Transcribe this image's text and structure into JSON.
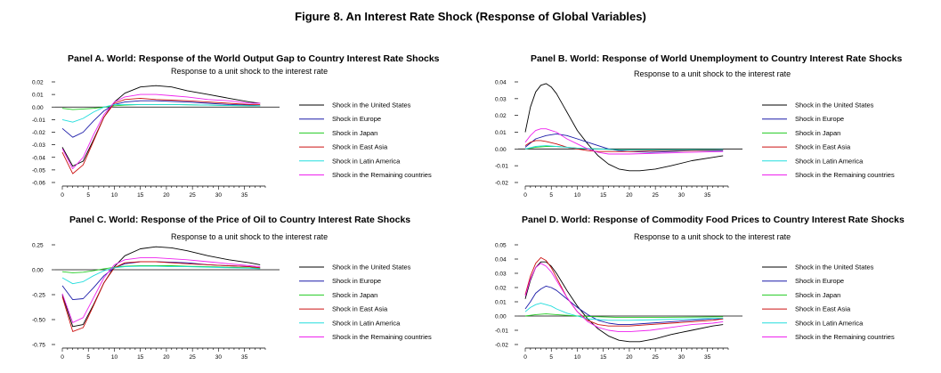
{
  "figure_title": "Figure 8. An Interest Rate Shock (Response of Global Variables)",
  "colors": {
    "United States": "#000000",
    "Europe": "#1a1aa8",
    "Japan": "#22cc22",
    "East Asia": "#cc1111",
    "Latin America": "#22dddd",
    "Remaining countries": "#ee22ee"
  },
  "chart_data": [
    {
      "type": "line",
      "panel": "A",
      "title": "Panel A. World: Response of the World Output Gap to Country Interest Rate Shocks",
      "subtitle": "Response to a unit shock to the interest rate",
      "ylim": [
        -0.06,
        0.02
      ],
      "yticks": [
        "0.02",
        "0.01",
        "0.00",
        "-0.01",
        "-0.02",
        "-0.03",
        "-0.04",
        "-0.05",
        "-0.06"
      ],
      "xlim": [
        0,
        39
      ],
      "xticks": [
        "0",
        "5",
        "10",
        "15",
        "20",
        "25",
        "30",
        "35"
      ],
      "legend": [
        "Shock in the United States",
        "Shock in Europe",
        "Shock in Japan",
        "Shock in East Asia",
        "Shock in Latin America",
        "Shock in the Remaining countries"
      ],
      "series": [
        {
          "name": "United States",
          "x": [
            0,
            2,
            4,
            6,
            8,
            10,
            12,
            15,
            18,
            21,
            24,
            28,
            32,
            36,
            38
          ],
          "values": [
            -0.032,
            -0.047,
            -0.043,
            -0.026,
            -0.008,
            0.004,
            0.011,
            0.016,
            0.017,
            0.016,
            0.013,
            0.01,
            0.007,
            0.004,
            0.003
          ]
        },
        {
          "name": "Europe",
          "x": [
            0,
            2,
            4,
            6,
            8,
            10,
            12,
            15,
            18,
            21,
            24,
            28,
            32,
            36,
            38
          ],
          "values": [
            -0.017,
            -0.024,
            -0.02,
            -0.011,
            -0.003,
            0.002,
            0.004,
            0.005,
            0.005,
            0.0045,
            0.004,
            0.003,
            0.002,
            0.0015,
            0.001
          ]
        },
        {
          "name": "Japan",
          "x": [
            0,
            2,
            4,
            6,
            8,
            10,
            12,
            15,
            18,
            21,
            24,
            28,
            32,
            36,
            38
          ],
          "values": [
            -0.001,
            -0.002,
            -0.0015,
            -0.001,
            0.0,
            0.001,
            0.0015,
            0.002,
            0.002,
            0.002,
            0.0018,
            0.0015,
            0.0012,
            0.001,
            0.001
          ]
        },
        {
          "name": "East Asia",
          "x": [
            0,
            2,
            4,
            6,
            8,
            10,
            12,
            15,
            18,
            21,
            24,
            28,
            32,
            36,
            38
          ],
          "values": [
            -0.036,
            -0.053,
            -0.046,
            -0.027,
            -0.008,
            0.003,
            0.006,
            0.007,
            0.006,
            0.0055,
            0.005,
            0.004,
            0.003,
            0.002,
            0.002
          ]
        },
        {
          "name": "Latin America",
          "x": [
            0,
            2,
            4,
            6,
            8,
            10,
            12,
            15,
            18,
            21,
            24,
            28,
            32,
            36,
            38
          ],
          "values": [
            -0.01,
            -0.012,
            -0.009,
            -0.004,
            0.0,
            0.002,
            0.002,
            0.002,
            0.002,
            0.002,
            0.0018,
            0.0015,
            0.0012,
            0.001,
            0.001
          ]
        },
        {
          "name": "Remaining countries",
          "x": [
            0,
            2,
            4,
            6,
            8,
            10,
            12,
            15,
            18,
            21,
            24,
            28,
            32,
            36,
            38
          ],
          "values": [
            -0.033,
            -0.049,
            -0.04,
            -0.022,
            -0.006,
            0.004,
            0.008,
            0.01,
            0.01,
            0.009,
            0.008,
            0.006,
            0.005,
            0.003,
            0.003
          ]
        }
      ]
    },
    {
      "type": "line",
      "panel": "B",
      "title": "Panel B. World: Response of World Unemployment to Country Interest Rate Shocks",
      "subtitle": "Response to a unit shock to the interest rate",
      "ylim": [
        -0.02,
        0.04
      ],
      "yticks": [
        "0.04",
        "0.03",
        "0.02",
        "0.01",
        "0.00",
        "-0.01",
        "-0.02"
      ],
      "xlim": [
        0,
        39
      ],
      "xticks": [
        "0",
        "5",
        "10",
        "15",
        "20",
        "25",
        "30",
        "35"
      ],
      "legend": [
        "Shock in the United States",
        "Shock in Europe",
        "Shock in Japan",
        "Shock in East Asia",
        "Shock in Latin America",
        "Shock in the Remaining countries"
      ],
      "series": [
        {
          "name": "United States",
          "x": [
            0,
            1,
            2,
            3,
            4,
            5,
            6,
            8,
            10,
            12,
            14,
            16,
            18,
            20,
            22,
            25,
            28,
            32,
            36,
            38
          ],
          "values": [
            0.01,
            0.025,
            0.034,
            0.038,
            0.039,
            0.037,
            0.033,
            0.022,
            0.011,
            0.003,
            -0.004,
            -0.009,
            -0.012,
            -0.013,
            -0.013,
            -0.012,
            -0.01,
            -0.007,
            -0.005,
            -0.004
          ]
        },
        {
          "name": "Europe",
          "x": [
            0,
            2,
            4,
            6,
            8,
            10,
            12,
            14,
            16,
            18,
            20,
            24,
            28,
            32,
            36,
            38
          ],
          "values": [
            0.001,
            0.006,
            0.008,
            0.009,
            0.008,
            0.006,
            0.004,
            0.002,
            0.0,
            -0.001,
            -0.0015,
            -0.002,
            -0.0015,
            -0.001,
            -0.001,
            -0.001
          ]
        },
        {
          "name": "Japan",
          "x": [
            0,
            2,
            4,
            6,
            8,
            10,
            14,
            18,
            24,
            30,
            38
          ],
          "values": [
            0.0,
            0.001,
            0.0015,
            0.0015,
            0.001,
            0.0005,
            0.0,
            -0.0005,
            -0.0005,
            -0.0005,
            -0.0003
          ]
        },
        {
          "name": "East Asia",
          "x": [
            0,
            1,
            2,
            3,
            4,
            6,
            8,
            10,
            12,
            14,
            16,
            20,
            26,
            32,
            38
          ],
          "values": [
            0.002,
            0.004,
            0.005,
            0.005,
            0.0045,
            0.003,
            0.001,
            0.0,
            -0.001,
            -0.0015,
            -0.0015,
            -0.0015,
            -0.001,
            -0.001,
            -0.0005
          ]
        },
        {
          "name": "Latin America",
          "x": [
            0,
            2,
            4,
            6,
            8,
            10,
            14,
            18,
            24,
            30,
            38
          ],
          "values": [
            0.0,
            0.0015,
            0.002,
            0.0015,
            0.001,
            0.0005,
            0.0,
            -0.0005,
            -0.0005,
            -0.0005,
            -0.0003
          ]
        },
        {
          "name": "Remaining countries",
          "x": [
            0,
            1,
            2,
            3,
            4,
            5,
            6,
            8,
            10,
            12,
            14,
            16,
            20,
            26,
            32,
            38
          ],
          "values": [
            0.004,
            0.008,
            0.011,
            0.012,
            0.012,
            0.011,
            0.01,
            0.006,
            0.003,
            0.0,
            -0.002,
            -0.003,
            -0.003,
            -0.0025,
            -0.002,
            -0.0015
          ]
        }
      ]
    },
    {
      "type": "line",
      "panel": "C",
      "title": "Panel C. World: Response of the Price of Oil to Country Interest Rate Shocks",
      "subtitle": "Response to a unit shock to the interest rate",
      "ylim": [
        -0.75,
        0.25
      ],
      "yticks": [
        "0.25",
        "0.00",
        "-0.25",
        "-0.50",
        "-0.75"
      ],
      "xlim": [
        0,
        39
      ],
      "xticks": [
        "0",
        "5",
        "10",
        "15",
        "20",
        "25",
        "30",
        "35"
      ],
      "legend": [
        "Shock in the United States",
        "Shock in Europe",
        "Shock in Japan",
        "Shock in East Asia",
        "Shock in Latin America",
        "Shock in the Remaining countries"
      ],
      "series": [
        {
          "name": "United States",
          "x": [
            0,
            2,
            4,
            6,
            8,
            10,
            12,
            15,
            18,
            21,
            24,
            28,
            32,
            36,
            38
          ],
          "values": [
            -0.25,
            -0.57,
            -0.55,
            -0.35,
            -0.13,
            0.03,
            0.14,
            0.21,
            0.23,
            0.22,
            0.19,
            0.14,
            0.1,
            0.07,
            0.05
          ]
        },
        {
          "name": "Europe",
          "x": [
            0,
            2,
            4,
            6,
            8,
            10,
            12,
            15,
            18,
            21,
            24,
            28,
            32,
            36,
            38
          ],
          "values": [
            -0.16,
            -0.3,
            -0.29,
            -0.18,
            -0.06,
            0.02,
            0.06,
            0.08,
            0.08,
            0.075,
            0.07,
            0.05,
            0.04,
            0.03,
            0.02
          ]
        },
        {
          "name": "Japan",
          "x": [
            0,
            2,
            4,
            6,
            8,
            10,
            12,
            15,
            18,
            21,
            24,
            28,
            32,
            36,
            38
          ],
          "values": [
            -0.02,
            -0.03,
            -0.025,
            -0.01,
            0.01,
            0.025,
            0.035,
            0.04,
            0.04,
            0.04,
            0.035,
            0.03,
            0.025,
            0.02,
            0.015
          ]
        },
        {
          "name": "East Asia",
          "x": [
            0,
            2,
            4,
            6,
            8,
            10,
            12,
            15,
            18,
            21,
            24,
            28,
            32,
            36,
            38
          ],
          "values": [
            -0.27,
            -0.62,
            -0.58,
            -0.36,
            -0.13,
            0.02,
            0.07,
            0.08,
            0.08,
            0.07,
            0.06,
            0.05,
            0.04,
            0.03,
            0.02
          ]
        },
        {
          "name": "Latin America",
          "x": [
            0,
            2,
            4,
            6,
            8,
            10,
            12,
            15,
            18,
            21,
            24,
            28,
            32,
            36,
            38
          ],
          "values": [
            -0.08,
            -0.14,
            -0.12,
            -0.06,
            -0.01,
            0.02,
            0.03,
            0.035,
            0.035,
            0.03,
            0.03,
            0.025,
            0.02,
            0.015,
            0.01
          ]
        },
        {
          "name": "Remaining countries",
          "x": [
            0,
            2,
            4,
            6,
            8,
            10,
            12,
            15,
            18,
            21,
            24,
            28,
            32,
            36,
            38
          ],
          "values": [
            -0.24,
            -0.53,
            -0.48,
            -0.28,
            -0.08,
            0.05,
            0.1,
            0.12,
            0.12,
            0.11,
            0.1,
            0.08,
            0.06,
            0.04,
            0.03
          ]
        }
      ]
    },
    {
      "type": "line",
      "panel": "D",
      "title": "Panel D. World: Response of Commodity Food Prices to Country Interest Rate Shocks",
      "subtitle": "Response to a unit shock to the interest rate",
      "ylim": [
        -0.02,
        0.05
      ],
      "yticks": [
        "0.05",
        "0.04",
        "0.03",
        "0.02",
        "0.01",
        "0.00",
        "-0.01",
        "-0.02"
      ],
      "xlim": [
        0,
        39
      ],
      "xticks": [
        "0",
        "5",
        "10",
        "15",
        "20",
        "25",
        "30",
        "35"
      ],
      "legend": [
        "Shock in the United States",
        "Shock in Europe",
        "Shock in Japan",
        "Shock in East Asia",
        "Shock in Latin America",
        "Shock in the Remaining countries"
      ],
      "series": [
        {
          "name": "United States",
          "x": [
            0,
            1,
            2,
            3,
            4,
            5,
            6,
            8,
            10,
            12,
            14,
            16,
            18,
            20,
            22,
            25,
            28,
            32,
            36,
            38
          ],
          "values": [
            0.012,
            0.025,
            0.034,
            0.038,
            0.038,
            0.035,
            0.03,
            0.018,
            0.007,
            -0.002,
            -0.009,
            -0.014,
            -0.017,
            -0.018,
            -0.018,
            -0.016,
            -0.013,
            -0.01,
            -0.007,
            -0.006
          ]
        },
        {
          "name": "Europe",
          "x": [
            0,
            1,
            2,
            3,
            4,
            5,
            6,
            8,
            10,
            12,
            14,
            16,
            18,
            20,
            24,
            28,
            32,
            36,
            38
          ],
          "values": [
            0.005,
            0.01,
            0.016,
            0.019,
            0.021,
            0.02,
            0.018,
            0.012,
            0.006,
            0.001,
            -0.003,
            -0.005,
            -0.006,
            -0.006,
            -0.005,
            -0.004,
            -0.003,
            -0.002,
            -0.002
          ]
        },
        {
          "name": "Japan",
          "x": [
            0,
            2,
            4,
            6,
            8,
            10,
            14,
            18,
            24,
            30,
            38
          ],
          "values": [
            0.0,
            0.001,
            0.0015,
            0.001,
            0.0005,
            0.0,
            -0.0005,
            -0.001,
            -0.001,
            -0.0008,
            -0.0005
          ]
        },
        {
          "name": "East Asia",
          "x": [
            0,
            1,
            2,
            3,
            4,
            5,
            6,
            8,
            10,
            12,
            14,
            16,
            18,
            20,
            24,
            28,
            32,
            36,
            38
          ],
          "values": [
            0.015,
            0.028,
            0.037,
            0.041,
            0.039,
            0.034,
            0.027,
            0.013,
            0.003,
            -0.003,
            -0.006,
            -0.007,
            -0.007,
            -0.007,
            -0.006,
            -0.005,
            -0.004,
            -0.003,
            -0.002
          ]
        },
        {
          "name": "Latin America",
          "x": [
            0,
            1,
            2,
            3,
            4,
            5,
            6,
            8,
            10,
            12,
            14,
            16,
            20,
            26,
            32,
            38
          ],
          "values": [
            0.003,
            0.006,
            0.008,
            0.009,
            0.008,
            0.007,
            0.005,
            0.002,
            0.0,
            -0.002,
            -0.0025,
            -0.003,
            -0.003,
            -0.0025,
            -0.002,
            -0.0015
          ]
        },
        {
          "name": "Remaining countries",
          "x": [
            0,
            1,
            2,
            3,
            4,
            5,
            6,
            8,
            10,
            12,
            14,
            16,
            18,
            20,
            24,
            28,
            32,
            36,
            38
          ],
          "values": [
            0.014,
            0.026,
            0.034,
            0.037,
            0.035,
            0.031,
            0.025,
            0.013,
            0.003,
            -0.004,
            -0.008,
            -0.01,
            -0.011,
            -0.011,
            -0.01,
            -0.008,
            -0.006,
            -0.005,
            -0.004
          ]
        }
      ]
    }
  ]
}
